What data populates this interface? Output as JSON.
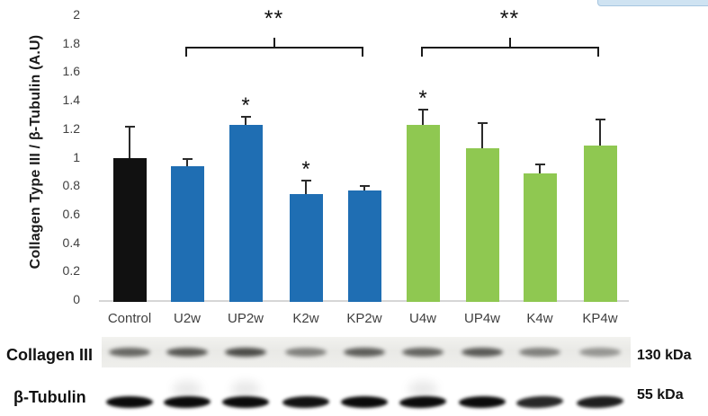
{
  "chart_data": {
    "type": "bar",
    "title": "",
    "xlabel": "",
    "ylabel": "Collagen Type III / β-Tubulin (A.U)",
    "ylim": [
      0,
      2
    ],
    "ytick_labels": [
      "0",
      "0.2",
      "0.4",
      "0.6",
      "0.8",
      "1",
      "1.2",
      "1.4",
      "1.6",
      "1.8",
      "2"
    ],
    "grid": false,
    "legend": null,
    "categories": [
      "Control",
      "U2w",
      "UP2w",
      "K2w",
      "KP2w",
      "U4w",
      "UP4w",
      "K4w",
      "KP4w"
    ],
    "values": [
      1.01,
      0.95,
      1.24,
      0.76,
      0.78,
      1.24,
      1.08,
      0.9,
      1.1
    ],
    "errors_plus": [
      0.21,
      0.04,
      0.05,
      0.08,
      0.02,
      0.1,
      0.16,
      0.05,
      0.17
    ],
    "colors": [
      "#111111",
      "#1f6eb3",
      "#1f6eb3",
      "#1f6eb3",
      "#1f6eb3",
      "#8fc851",
      "#8fc851",
      "#8fc851",
      "#8fc851"
    ],
    "group_colors": {
      "control": "#111111",
      "two_week": "#1f6eb3",
      "four_week": "#8fc851"
    },
    "stars": [
      "",
      "",
      "*",
      "*",
      "",
      "*",
      "",
      "",
      ""
    ],
    "brackets": [
      {
        "from": "U2w",
        "to": "KP2w",
        "label": "**"
      },
      {
        "from": "U4w",
        "to": "KP4w",
        "label": "**"
      }
    ]
  },
  "blot": {
    "rows": [
      {
        "label": "Collagen III",
        "size_label": "130 kDa",
        "band_intensities": [
          0.74,
          0.84,
          0.9,
          0.6,
          0.8,
          0.76,
          0.82,
          0.6,
          0.48
        ]
      },
      {
        "label": "β-Tubulin",
        "size_label": "55 kDa",
        "band_intensities": [
          1,
          1,
          1,
          0.97,
          1,
          1,
          1,
          0.88,
          0.92
        ]
      }
    ]
  },
  "overlay": {
    "top_right_fragment_fill": "#cfe3f2",
    "top_right_fragment_border": "#a6c5e0"
  }
}
